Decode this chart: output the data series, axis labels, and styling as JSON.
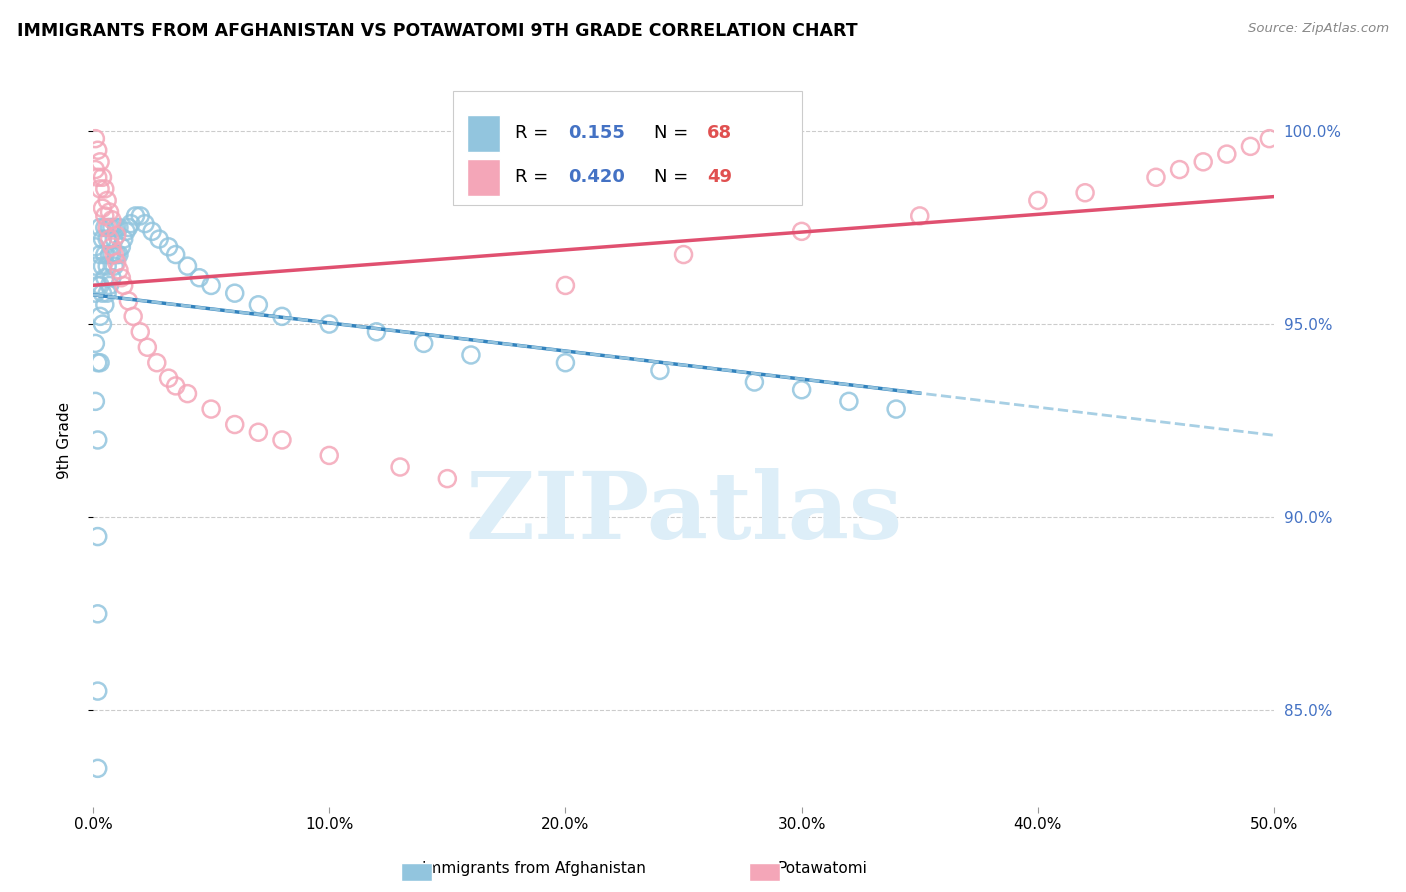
{
  "title": "IMMIGRANTS FROM AFGHANISTAN VS POTAWATOMI 9TH GRADE CORRELATION CHART",
  "source": "Source: ZipAtlas.com",
  "ylabel": "9th Grade",
  "xlim": [
    0.0,
    0.5
  ],
  "ylim": [
    0.825,
    1.015
  ],
  "y_ticks": [
    0.85,
    0.9,
    0.95,
    1.0
  ],
  "y_tick_labels": [
    "85.0%",
    "90.0%",
    "95.0%",
    "100.0%"
  ],
  "x_ticks": [
    0.0,
    0.1,
    0.2,
    0.3,
    0.4,
    0.5
  ],
  "x_tick_labels": [
    "0.0%",
    "10.0%",
    "20.0%",
    "30.0%",
    "40.0%",
    "50.0%"
  ],
  "legend_r1": "R = ",
  "legend_v1": "0.155",
  "legend_n1_label": "N = ",
  "legend_n1": "68",
  "legend_r2": "R = ",
  "legend_v2": "0.420",
  "legend_n2_label": "N = ",
  "legend_n2": "49",
  "blue_fill": "#92c5de",
  "blue_edge": "#92c5de",
  "blue_line": "#3182bd",
  "blue_dash": "#9ecae1",
  "pink_fill": "#f4a6b8",
  "pink_edge": "#f4a6b8",
  "pink_line": "#e05070",
  "right_axis_color": "#4472c4",
  "watermark_text": "ZIPatlas",
  "watermark_color": "#ddeef8",
  "grid_color": "#cccccc",
  "bottom_legend_blue": "Immigrants from Afghanistan",
  "bottom_legend_pink": "Potawatomi",
  "blue_x": [
    0.001,
    0.001,
    0.001,
    0.001,
    0.001,
    0.002,
    0.002,
    0.002,
    0.002,
    0.002,
    0.002,
    0.002,
    0.003,
    0.003,
    0.003,
    0.003,
    0.003,
    0.004,
    0.004,
    0.004,
    0.004,
    0.005,
    0.005,
    0.005,
    0.005,
    0.006,
    0.006,
    0.006,
    0.007,
    0.007,
    0.007,
    0.008,
    0.008,
    0.008,
    0.009,
    0.009,
    0.01,
    0.01,
    0.011,
    0.011,
    0.012,
    0.013,
    0.014,
    0.015,
    0.016,
    0.018,
    0.02,
    0.022,
    0.025,
    0.028,
    0.032,
    0.035,
    0.04,
    0.045,
    0.05,
    0.06,
    0.07,
    0.08,
    0.1,
    0.12,
    0.14,
    0.16,
    0.2,
    0.24,
    0.28,
    0.3,
    0.32,
    0.34
  ],
  "blue_y": [
    0.93,
    0.945,
    0.958,
    0.965,
    0.97,
    0.835,
    0.855,
    0.875,
    0.895,
    0.92,
    0.94,
    0.96,
    0.94,
    0.952,
    0.96,
    0.968,
    0.975,
    0.95,
    0.958,
    0.965,
    0.972,
    0.955,
    0.962,
    0.968,
    0.975,
    0.958,
    0.965,
    0.972,
    0.96,
    0.968,
    0.975,
    0.962,
    0.968,
    0.975,
    0.965,
    0.972,
    0.968,
    0.975,
    0.968,
    0.975,
    0.97,
    0.972,
    0.974,
    0.975,
    0.976,
    0.978,
    0.978,
    0.976,
    0.974,
    0.972,
    0.97,
    0.968,
    0.965,
    0.962,
    0.96,
    0.958,
    0.955,
    0.952,
    0.95,
    0.948,
    0.945,
    0.942,
    0.94,
    0.938,
    0.935,
    0.933,
    0.93,
    0.928
  ],
  "pink_x": [
    0.001,
    0.001,
    0.002,
    0.002,
    0.003,
    0.003,
    0.004,
    0.004,
    0.005,
    0.005,
    0.006,
    0.006,
    0.007,
    0.007,
    0.008,
    0.008,
    0.009,
    0.01,
    0.01,
    0.011,
    0.012,
    0.013,
    0.015,
    0.017,
    0.02,
    0.023,
    0.027,
    0.032,
    0.04,
    0.05,
    0.07,
    0.1,
    0.15,
    0.2,
    0.25,
    0.3,
    0.35,
    0.4,
    0.42,
    0.45,
    0.46,
    0.47,
    0.48,
    0.49,
    0.498,
    0.035,
    0.06,
    0.08,
    0.13
  ],
  "pink_y": [
    0.99,
    0.998,
    0.988,
    0.995,
    0.985,
    0.992,
    0.98,
    0.988,
    0.978,
    0.985,
    0.975,
    0.982,
    0.972,
    0.979,
    0.97,
    0.977,
    0.968,
    0.966,
    0.973,
    0.964,
    0.962,
    0.96,
    0.956,
    0.952,
    0.948,
    0.944,
    0.94,
    0.936,
    0.932,
    0.928,
    0.922,
    0.916,
    0.91,
    0.96,
    0.968,
    0.974,
    0.978,
    0.982,
    0.984,
    0.988,
    0.99,
    0.992,
    0.994,
    0.996,
    0.998,
    0.934,
    0.924,
    0.92,
    0.913
  ],
  "blue_line_x_end": 0.35,
  "pink_line_x_end": 0.5
}
